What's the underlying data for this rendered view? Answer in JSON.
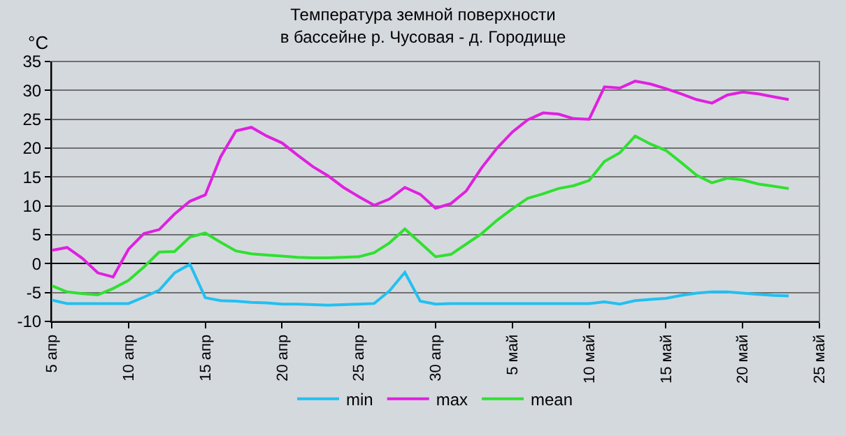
{
  "chart_data": {
    "type": "line",
    "title": "Температура земной поверхности",
    "subtitle": "в бассейне р. Чусовая - д. Городище",
    "ylabel": "°C",
    "x": [
      "--04-05",
      "--04-06",
      "--04-07",
      "--04-08",
      "--04-09",
      "--04-10",
      "--04-11",
      "--04-12",
      "--04-13",
      "--04-14",
      "--04-15",
      "--04-16",
      "--04-17",
      "--04-18",
      "--04-19",
      "--04-20",
      "--04-21",
      "--04-22",
      "--04-23",
      "--04-24",
      "--04-25",
      "--04-26",
      "--04-27",
      "--04-28",
      "--04-29",
      "--04-30",
      "--05-01",
      "--05-02",
      "--05-03",
      "--05-04",
      "--05-05",
      "--05-06",
      "--05-07",
      "--05-08",
      "--05-09",
      "--05-10",
      "--05-11",
      "--05-12",
      "--05-13",
      "--05-14",
      "--05-15",
      "--05-16",
      "--05-17",
      "--05-18",
      "--05-19",
      "--05-20",
      "--05-21",
      "--05-22",
      "--05-23"
    ],
    "series": [
      {
        "name": "min",
        "color": "#22c0f0",
        "values": [
          -6.3,
          -6.9,
          -6.9,
          -6.9,
          -6.9,
          -6.9,
          -5.8,
          -4.6,
          -1.6,
          -0.1,
          -5.9,
          -6.4,
          -6.5,
          -6.7,
          -6.8,
          -7.0,
          -7.0,
          -7.1,
          -7.2,
          -7.1,
          -7.0,
          -6.9,
          -4.7,
          -1.5,
          -6.5,
          -7.0,
          -6.9,
          -6.9,
          -6.9,
          -6.9,
          -6.9,
          -6.9,
          -6.9,
          -6.9,
          -6.9,
          -6.9,
          -6.6,
          -7.0,
          -6.4,
          -6.2,
          -6.0,
          -5.5,
          -5.1,
          -4.9,
          -4.9,
          -5.1,
          -5.3,
          -5.5,
          -5.6
        ]
      },
      {
        "name": "max",
        "color": "#e020e0",
        "values": [
          2.3,
          2.8,
          0.9,
          -1.6,
          -2.3,
          2.5,
          5.2,
          5.9,
          8.6,
          10.8,
          11.9,
          18.5,
          23.0,
          23.6,
          22.1,
          20.9,
          18.8,
          16.8,
          15.2,
          13.2,
          11.6,
          10.1,
          11.2,
          13.2,
          12.0,
          9.6,
          10.4,
          12.6,
          16.6,
          20.0,
          22.8,
          24.9,
          26.1,
          25.9,
          25.1,
          25.0,
          30.6,
          30.4,
          31.6,
          31.1,
          30.3,
          29.4,
          28.4,
          27.8,
          29.2,
          29.7,
          29.4,
          28.9,
          28.4
        ]
      },
      {
        "name": "mean",
        "color": "#30e030",
        "values": [
          -3.8,
          -4.9,
          -5.2,
          -5.4,
          -4.3,
          -2.9,
          -0.6,
          2.0,
          2.1,
          4.6,
          5.3,
          3.7,
          2.2,
          1.7,
          1.5,
          1.3,
          1.1,
          1.0,
          1.0,
          1.1,
          1.2,
          1.9,
          3.6,
          6.0,
          3.6,
          1.2,
          1.6,
          3.4,
          5.2,
          7.5,
          9.5,
          11.3,
          12.1,
          13.0,
          13.5,
          14.4,
          17.7,
          19.2,
          22.1,
          20.7,
          19.6,
          17.5,
          15.3,
          14.0,
          14.8,
          14.5,
          13.8,
          13.4,
          13.0
        ]
      }
    ],
    "xlim": [
      "--04-05",
      "--05-25"
    ],
    "xticks": [
      {
        "value": "--04-05",
        "label": "5 апр"
      },
      {
        "value": "--04-10",
        "label": "10 апр"
      },
      {
        "value": "--04-15",
        "label": "15 апр"
      },
      {
        "value": "--04-20",
        "label": "20 апр"
      },
      {
        "value": "--04-25",
        "label": "25 апр"
      },
      {
        "value": "--04-30",
        "label": "30 апр"
      },
      {
        "value": "--05-05",
        "label": "5 май"
      },
      {
        "value": "--05-10",
        "label": "10 май"
      },
      {
        "value": "--05-15",
        "label": "15 май"
      },
      {
        "value": "--05-20",
        "label": "20 май"
      },
      {
        "value": "--05-25",
        "label": "25 май"
      }
    ],
    "ylim": [
      -10,
      35
    ],
    "yticks": [
      -10,
      -5,
      0,
      5,
      10,
      15,
      20,
      25,
      30,
      35
    ],
    "grid": "y",
    "legend": "bottom",
    "marker": "none",
    "line_style": "solid"
  }
}
